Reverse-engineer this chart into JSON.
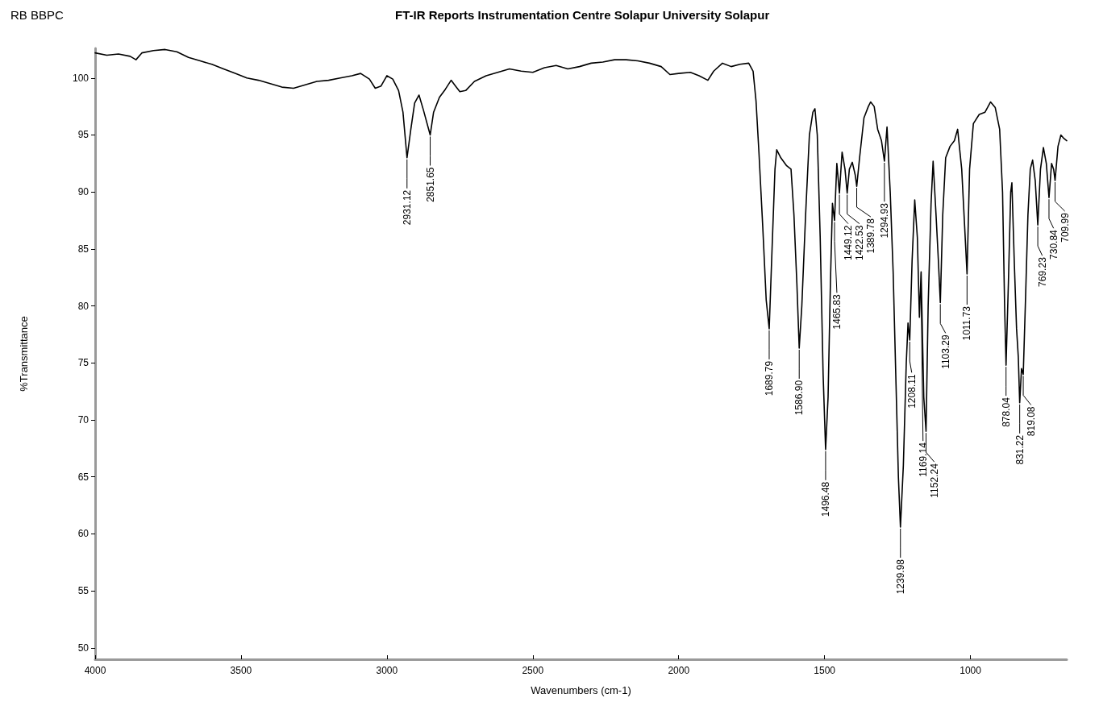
{
  "chart_data": {
    "type": "line",
    "title": "FT-IR Reports Instrumentation Centre Solapur University Solapur",
    "subtitle": "RB BBPC",
    "xlabel": "Wavenumbers (cm-1)",
    "ylabel": "%Transmittance",
    "xlim": [
      4000,
      670
    ],
    "xticks": [
      4000,
      3500,
      3000,
      2500,
      2000,
      1500,
      1000
    ],
    "ylim": [
      49,
      102.6
    ],
    "yticks": [
      50,
      55,
      60,
      65,
      70,
      75,
      80,
      85,
      90,
      95,
      100
    ],
    "grid": false,
    "marker": "none",
    "line_style": "solid",
    "series": [
      {
        "color": "#000000",
        "x": [
          4000,
          3960,
          3920,
          3880,
          3860,
          3840,
          3800,
          3760,
          3720,
          3680,
          3640,
          3600,
          3560,
          3520,
          3480,
          3440,
          3400,
          3360,
          3320,
          3280,
          3240,
          3200,
          3160,
          3120,
          3090,
          3060,
          3040,
          3020,
          3000,
          2980,
          2960,
          2945,
          2931.12,
          2918,
          2905,
          2890,
          2875,
          2851.65,
          2840,
          2820,
          2800,
          2780,
          2765,
          2750,
          2730,
          2700,
          2660,
          2620,
          2580,
          2540,
          2500,
          2460,
          2420,
          2380,
          2340,
          2300,
          2260,
          2220,
          2180,
          2140,
          2100,
          2060,
          2030,
          2000,
          1960,
          1930,
          1900,
          1880,
          1850,
          1820,
          1790,
          1760,
          1745,
          1735,
          1725,
          1712,
          1700,
          1689.79,
          1680,
          1670,
          1664,
          1650,
          1630,
          1615,
          1605,
          1595,
          1586.9,
          1578,
          1565,
          1552,
          1540,
          1533,
          1525,
          1515,
          1505,
          1496.48,
          1488,
          1480,
          1473,
          1465.83,
          1458,
          1449.12,
          1440,
          1430,
          1422.53,
          1415,
          1405,
          1395,
          1389.78,
          1380,
          1365,
          1350,
          1342,
          1330,
          1318,
          1305,
          1294.93,
          1286,
          1275,
          1265,
          1255,
          1247,
          1239.98,
          1230,
          1220,
          1214,
          1208.11,
          1200,
          1191,
          1182,
          1175,
          1169.14,
          1160,
          1152.24,
          1145,
          1135,
          1128,
          1118,
          1110,
          1103.29,
          1095,
          1085,
          1070,
          1055,
          1044,
          1030,
          1020,
          1011.73,
          1003,
          990,
          970,
          950,
          931,
          915,
          900,
          890,
          883,
          878.04,
          870,
          862,
          858,
          850,
          842,
          836,
          831.22,
          825,
          819.08,
          812,
          803,
          795,
          787,
          778,
          769.23,
          760,
          750,
          740,
          730.84,
          722,
          715,
          709.99,
          700,
          690,
          680,
          670
        ],
        "values": [
          102.2,
          102.0,
          102.1,
          101.9,
          101.6,
          102.2,
          102.4,
          102.5,
          102.3,
          101.8,
          101.5,
          101.2,
          100.8,
          100.4,
          100.0,
          99.8,
          99.5,
          99.2,
          99.1,
          99.4,
          99.7,
          99.8,
          100.0,
          100.2,
          100.4,
          99.9,
          99.1,
          99.3,
          100.2,
          99.9,
          98.9,
          97.0,
          93.0,
          95.5,
          97.8,
          98.5,
          97.2,
          95.0,
          97.0,
          98.3,
          99.0,
          99.8,
          99.3,
          98.8,
          98.9,
          99.7,
          100.2,
          100.5,
          100.8,
          100.6,
          100.5,
          100.9,
          101.1,
          100.8,
          101.0,
          101.3,
          101.4,
          101.6,
          101.6,
          101.5,
          101.3,
          101.0,
          100.3,
          100.4,
          100.5,
          100.2,
          99.8,
          100.6,
          101.3,
          101.0,
          101.2,
          101.3,
          100.6,
          98.0,
          93.5,
          87.0,
          80.5,
          78.0,
          85.0,
          92.0,
          93.7,
          93.0,
          92.3,
          92.0,
          88.0,
          82.0,
          76.3,
          80.0,
          88.0,
          95.0,
          97.0,
          97.3,
          95.0,
          86.0,
          74.0,
          67.4,
          72.0,
          82.0,
          89.0,
          87.5,
          92.5,
          89.9,
          93.5,
          92.0,
          89.9,
          92.0,
          92.6,
          91.5,
          90.5,
          93.0,
          96.5,
          97.5,
          97.9,
          97.5,
          95.5,
          94.5,
          92.7,
          95.7,
          90.0,
          83.0,
          73.0,
          65.0,
          60.6,
          66.0,
          75.0,
          78.5,
          77.0,
          84.0,
          89.3,
          86.0,
          79.0,
          83.0,
          72.0,
          69.0,
          80.0,
          89.0,
          92.7,
          88.0,
          84.0,
          80.3,
          88.0,
          93.0,
          94.0,
          94.5,
          95.5,
          92.0,
          87.0,
          82.8,
          92.0,
          96.0,
          96.8,
          97.0,
          97.9,
          97.4,
          95.5,
          90.0,
          80.0,
          74.8,
          82.0,
          90.0,
          90.8,
          84.0,
          78.0,
          75.5,
          71.5,
          74.5,
          74.0,
          80.0,
          88.0,
          92.0,
          92.8,
          91.0,
          87.1,
          92.0,
          93.9,
          92.5,
          89.5,
          92.5,
          92.0,
          91.0,
          94.0,
          95.0,
          94.7,
          94.5
        ]
      }
    ],
    "annotations": [
      {
        "text": "2931.12",
        "x": 2931.12,
        "y": 93.0
      },
      {
        "text": "2851.65",
        "x": 2851.65,
        "y": 95.0
      },
      {
        "text": "1689.79",
        "x": 1689.79,
        "y": 78.0
      },
      {
        "text": "1586.90",
        "x": 1586.9,
        "y": 76.3
      },
      {
        "text": "1496.48",
        "x": 1496.48,
        "y": 67.4
      },
      {
        "text": "1465.83",
        "x": 1465.83,
        "y": 87.5
      },
      {
        "text": "1449.12",
        "x": 1449.12,
        "y": 89.9
      },
      {
        "text": "1422.53",
        "x": 1422.53,
        "y": 89.9
      },
      {
        "text": "1389.78",
        "x": 1389.78,
        "y": 90.5
      },
      {
        "text": "1294.93",
        "x": 1294.93,
        "y": 92.7
      },
      {
        "text": "1239.98",
        "x": 1239.98,
        "y": 60.6
      },
      {
        "text": "1208.11",
        "x": 1208.11,
        "y": 77.0
      },
      {
        "text": "1169.14",
        "x": 1169.14,
        "y": 83.0
      },
      {
        "text": "1152.24",
        "x": 1152.24,
        "y": 69.0
      },
      {
        "text": "1103.29",
        "x": 1103.29,
        "y": 80.3
      },
      {
        "text": "1011.73",
        "x": 1011.73,
        "y": 82.8
      },
      {
        "text": "878.04",
        "x": 878.04,
        "y": 74.8
      },
      {
        "text": "831.22",
        "x": 831.22,
        "y": 71.5
      },
      {
        "text": "819.08",
        "x": 819.08,
        "y": 74.0
      },
      {
        "text": "769.23",
        "x": 769.23,
        "y": 87.1
      },
      {
        "text": "730.84",
        "x": 730.84,
        "y": 89.5
      },
      {
        "text": "709.99",
        "x": 709.99,
        "y": 91.0
      }
    ]
  }
}
